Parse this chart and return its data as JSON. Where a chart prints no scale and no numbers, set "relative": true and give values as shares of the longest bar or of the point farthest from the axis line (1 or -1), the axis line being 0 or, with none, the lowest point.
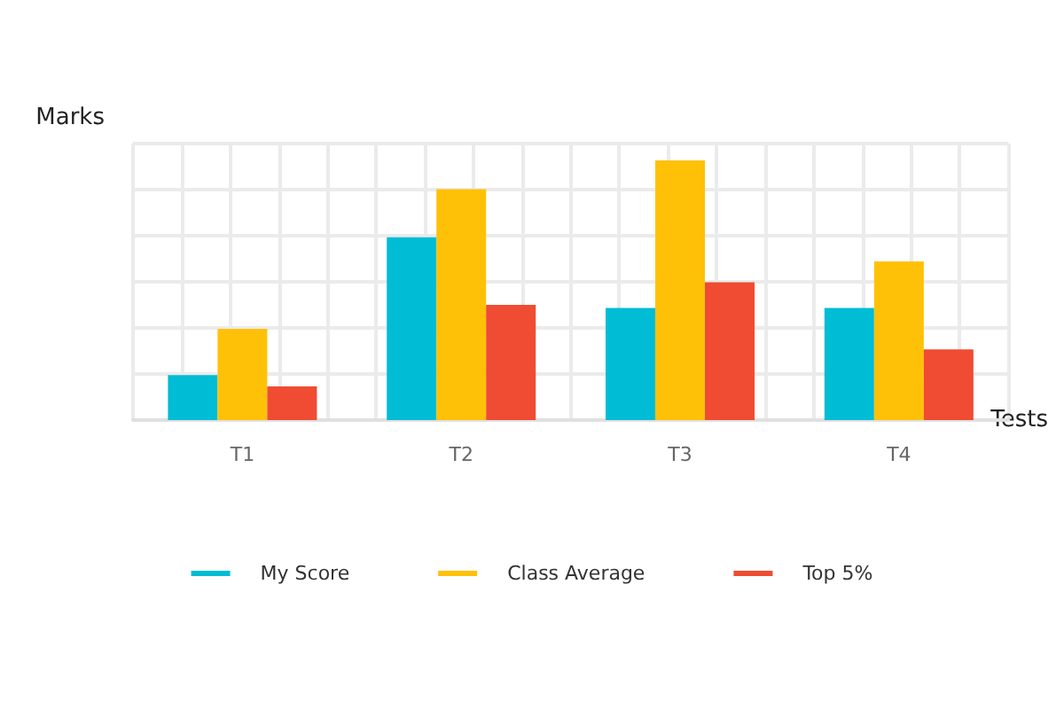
{
  "chart_data": {
    "type": "bar",
    "xlabel": "Tests",
    "ylabel": "Marks",
    "categories": [
      "T1",
      "T2",
      "T3",
      "T4"
    ],
    "relative": true,
    "series": [
      {
        "name": "My Score",
        "color": "#00bcd4",
        "values": [
          0.173,
          0.704,
          0.432,
          0.432
        ]
      },
      {
        "name": "Class Average",
        "color": "#ffc107",
        "values": [
          0.352,
          0.889,
          1,
          0.611
        ]
      },
      {
        "name": "Top 5%",
        "color": "#f04b33",
        "values": [
          0.13,
          0.444,
          0.531,
          0.272
        ]
      }
    ],
    "grid": true,
    "legend": "bottom"
  }
}
